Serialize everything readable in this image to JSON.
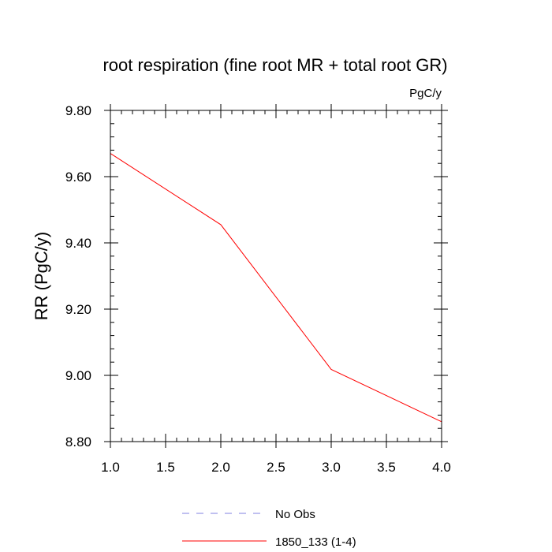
{
  "chart_data": {
    "type": "line",
    "title": "root respiration (fine root MR + total root GR)",
    "units_label": "PgC/y",
    "xlabel": "",
    "ylabel": "RR  (PgC/y)",
    "xlim": [
      1.0,
      4.0
    ],
    "ylim": [
      8.8,
      9.8
    ],
    "x_ticks": [
      1.0,
      1.5,
      2.0,
      2.5,
      3.0,
      3.5,
      4.0
    ],
    "x_tick_labels": [
      "1.0",
      "1.5",
      "2.0",
      "2.5",
      "3.0",
      "3.5",
      "4.0"
    ],
    "y_ticks": [
      8.8,
      9.0,
      9.2,
      9.4,
      9.6,
      9.8
    ],
    "y_tick_labels": [
      "8.80",
      "9.00",
      "9.20",
      "9.40",
      "9.60",
      "9.80"
    ],
    "x_minor_step": 0.1,
    "y_minor_step": 0.04,
    "grid": false,
    "legend_position": "bottom",
    "series": [
      {
        "name": "No Obs",
        "color": "#8080e0",
        "dash": "dashed",
        "x": [],
        "values": []
      },
      {
        "name": "1850_133 (1-4)",
        "color": "#ff0000",
        "dash": "solid",
        "x": [
          1.0,
          2.0,
          3.0,
          4.0
        ],
        "values": [
          9.67,
          9.455,
          9.018,
          8.86
        ]
      }
    ]
  }
}
